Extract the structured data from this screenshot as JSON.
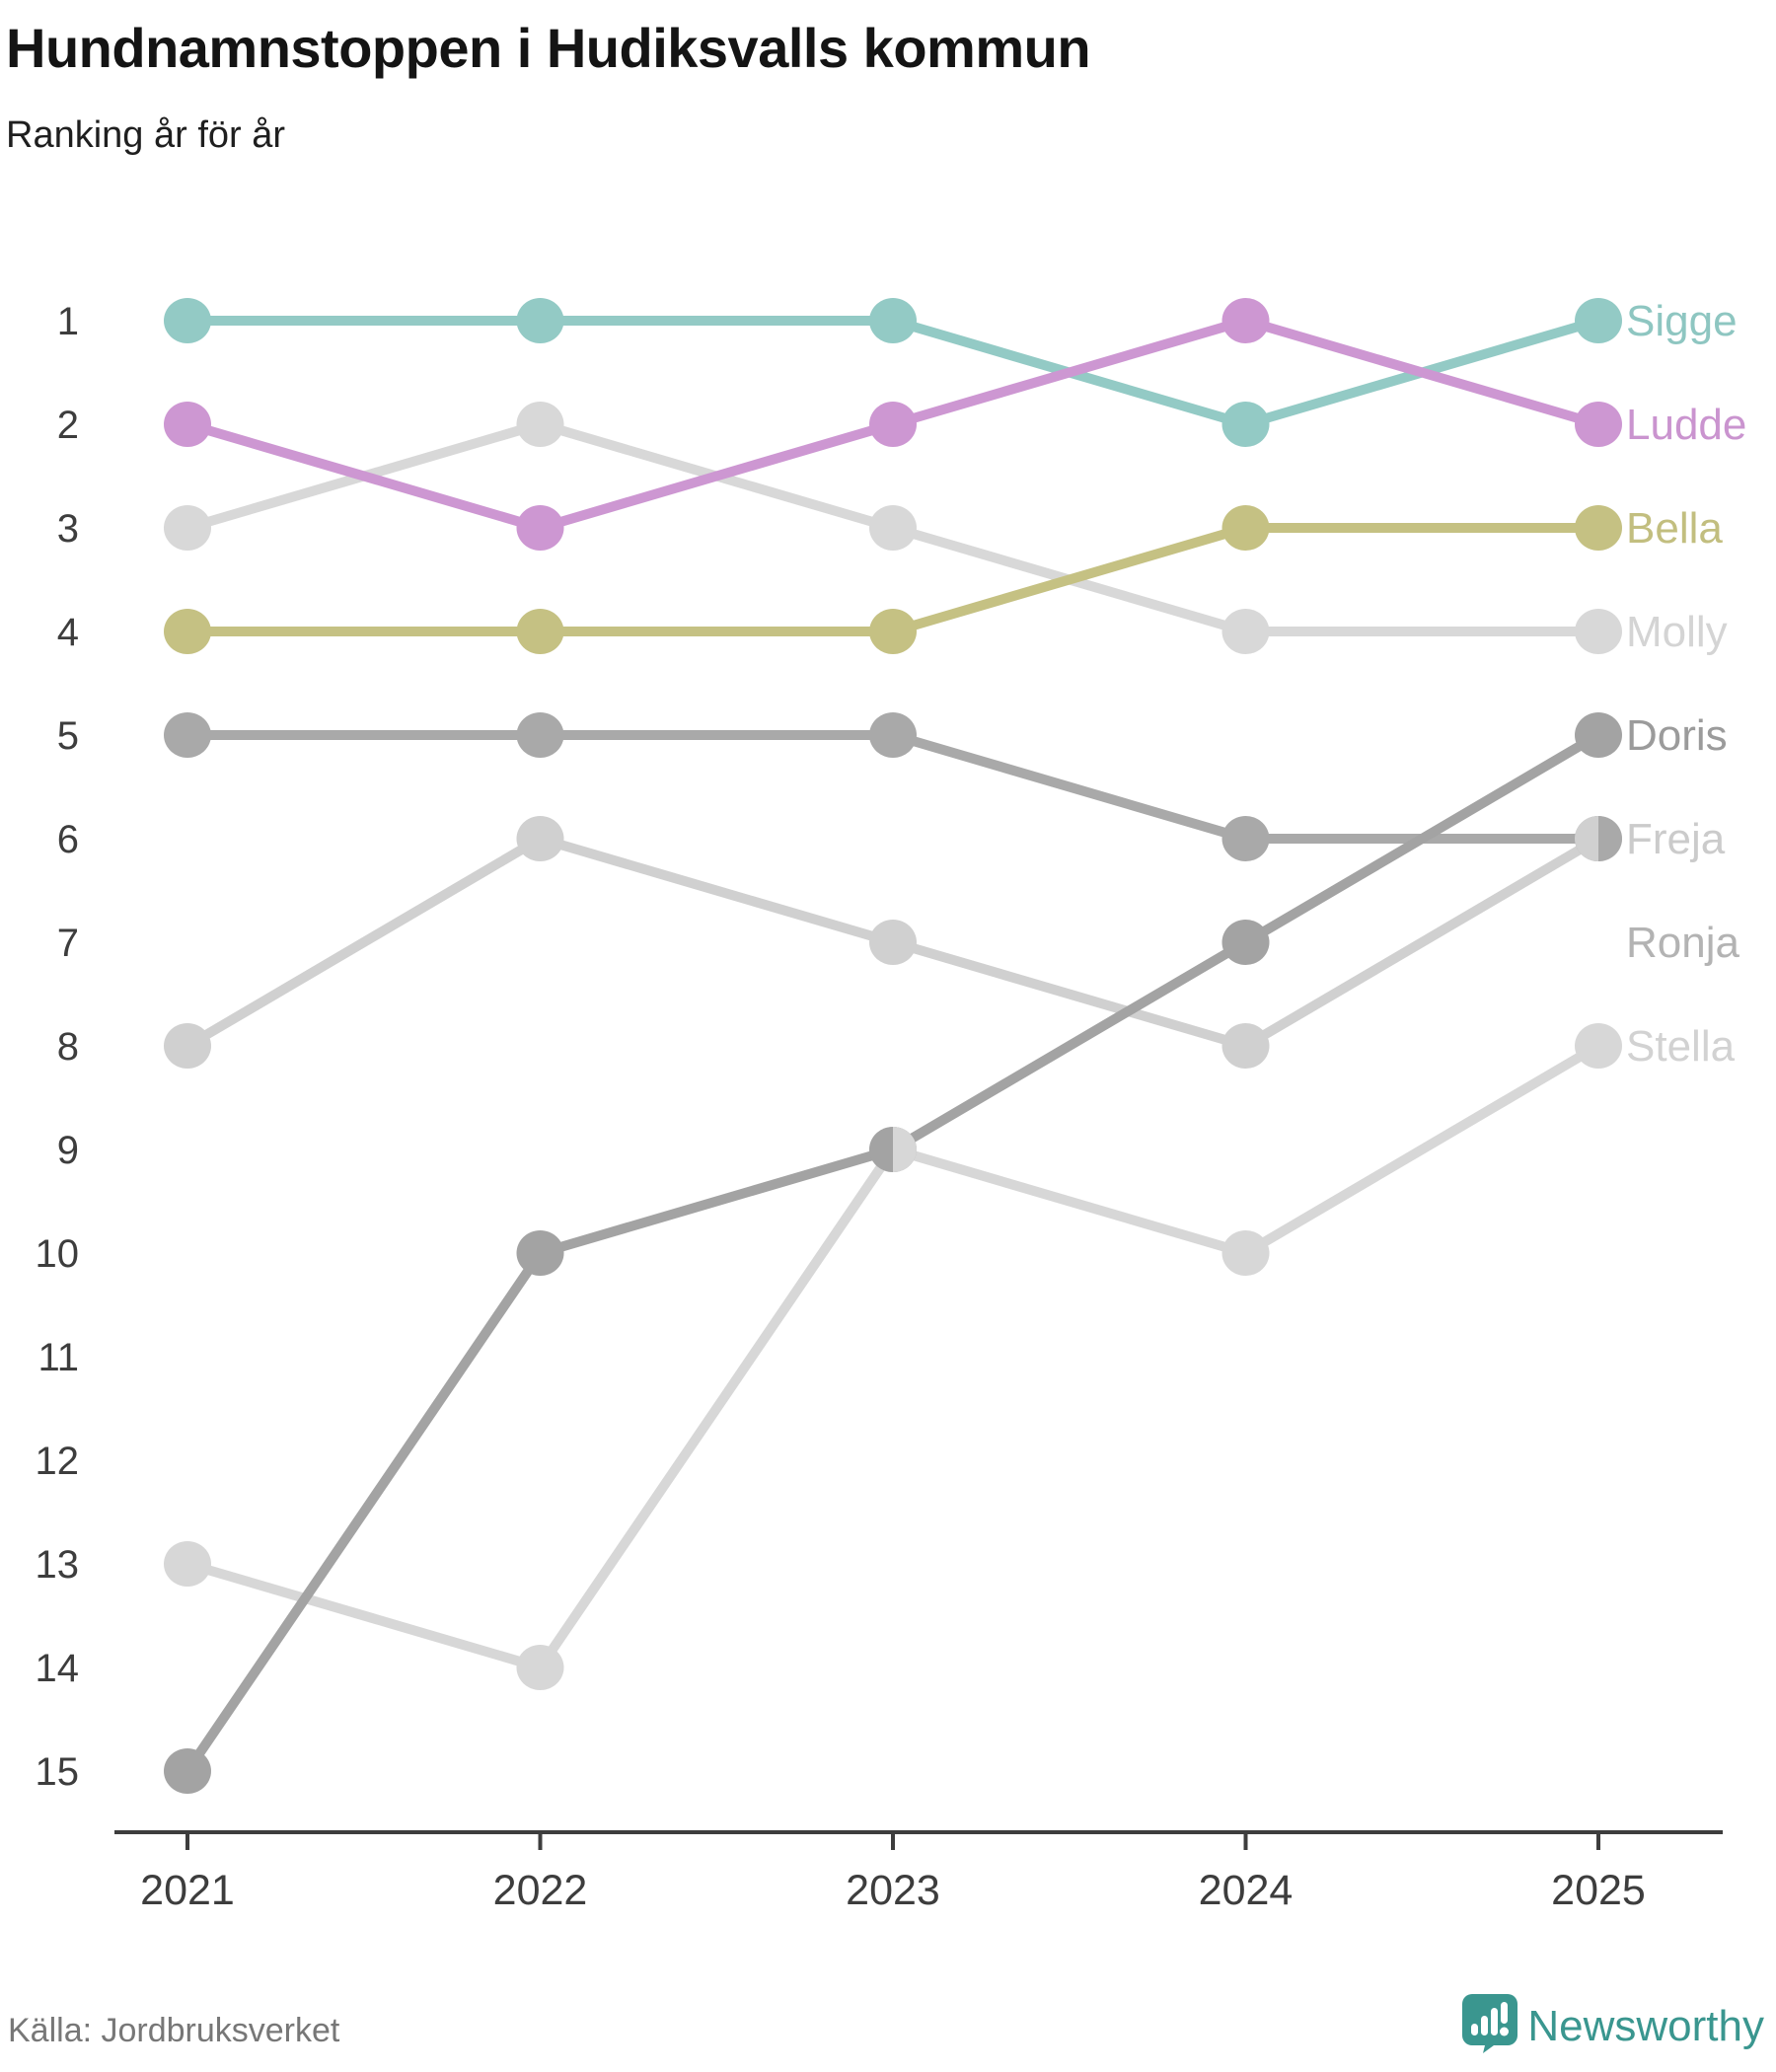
{
  "header": {
    "title": "Hundnamnstoppen i Hudiksvalls kommun",
    "subtitle": "Ranking år för år"
  },
  "chart_data": {
    "type": "line",
    "variant": "bump-rank-chart",
    "title": "Hundnamnstoppen i Hudiksvalls kommun",
    "subtitle": "Ranking år för år",
    "x": [
      2021,
      2022,
      2023,
      2024,
      2025
    ],
    "x_labels": [
      "2021",
      "2022",
      "2023",
      "2024",
      "2025"
    ],
    "y_ranks": [
      1,
      2,
      3,
      4,
      5,
      6,
      7,
      8,
      9,
      10,
      11,
      12,
      13,
      14,
      15
    ],
    "y_axis_inverted": true,
    "grid": false,
    "legend_position": "right-of-last-point",
    "axis_color": "#3d3d3d",
    "series": [
      {
        "name": "Stella",
        "values": [
          13,
          14,
          9,
          10,
          8
        ],
        "color": "#d7d7d7",
        "label_color": "#d2d2d2",
        "label_rank": 8
      },
      {
        "name": "Freja",
        "values": [
          8,
          6,
          7,
          8,
          6
        ],
        "color": "#d0d0d0",
        "label_color": "#cbcbcb",
        "label_rank": 6
      },
      {
        "name": "Molly",
        "values": [
          3,
          2,
          3,
          4,
          4
        ],
        "color": "#d8d8d8",
        "label_color": "#d4d4d4",
        "label_rank": 4
      },
      {
        "name": "Ronja",
        "values": [
          5,
          5,
          5,
          6,
          6
        ],
        "color": "#a9a9a9",
        "label_color": "#b3b3b3",
        "label_rank": 7
      },
      {
        "name": "Doris",
        "values": [
          15,
          10,
          9,
          7,
          5
        ],
        "color": "#a3a3a3",
        "label_color": "#9b9b9b",
        "label_rank": 5
      },
      {
        "name": "Bella",
        "values": [
          4,
          4,
          4,
          3,
          3
        ],
        "color": "#c5c183",
        "label_color": "#c2be7f",
        "label_rank": 3
      },
      {
        "name": "Sigge",
        "values": [
          1,
          1,
          1,
          2,
          1
        ],
        "color": "#93cac5",
        "label_color": "#8ec6c1",
        "label_rank": 1
      },
      {
        "name": "Ludde",
        "values": [
          2,
          3,
          2,
          1,
          2
        ],
        "color": "#cd97d2",
        "label_color": "#ca94cf",
        "label_rank": 2
      }
    ],
    "tie_marker_overlays": [
      {
        "x": 2023,
        "rank": 9,
        "series": "Stella",
        "half": "right"
      },
      {
        "x": 2025,
        "rank": 6,
        "series": "Freja",
        "half": "left"
      }
    ]
  },
  "footer": {
    "source": "Källa: Jordbruksverket",
    "brand": "Newsworthy",
    "brand_color": "#3a968f"
  }
}
